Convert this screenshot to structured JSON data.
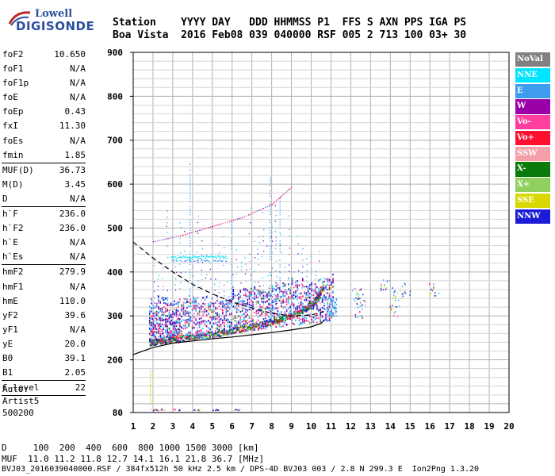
{
  "logo": {
    "line1": "Lowell",
    "line2": "DIGISONDE"
  },
  "header": {
    "row1": "Station    YYYY DAY   DDD HHMMSS P1  FFS S AXN PPS IGA PS",
    "row2": "Boa Vista  2016 Feb08 039 040000 RSF 005 2 713 100 03+ 30"
  },
  "params": [
    {
      "k": "foF2",
      "v": "10.650"
    },
    {
      "k": "foF1",
      "v": "N/A"
    },
    {
      "k": "foF1p",
      "v": "N/A"
    },
    {
      "k": "foE",
      "v": "N/A"
    },
    {
      "k": "foEp",
      "v": "0.43"
    },
    {
      "k": "fxI",
      "v": "11.30"
    },
    {
      "k": "foEs",
      "v": "N/A"
    },
    {
      "k": "fmin",
      "v": "1.85"
    },
    {
      "sep": true
    },
    {
      "k": "MUF(D)",
      "v": "36.73"
    },
    {
      "k": "M(D)",
      "v": "3.45"
    },
    {
      "k": "D",
      "v": "N/A"
    },
    {
      "sep": true
    },
    {
      "k": "h`F",
      "v": "236.0"
    },
    {
      "k": "h`F2",
      "v": "236.0"
    },
    {
      "k": "h`E",
      "v": "N/A"
    },
    {
      "k": "h`Es",
      "v": "N/A"
    },
    {
      "sep": true
    },
    {
      "k": "hmF2",
      "v": "279.9"
    },
    {
      "k": "hmF1",
      "v": "N/A"
    },
    {
      "k": "hmE",
      "v": "110.0"
    },
    {
      "k": "yF2",
      "v": "39.6"
    },
    {
      "k": "yF1",
      "v": "N/A"
    },
    {
      "k": "yE",
      "v": "20.0"
    },
    {
      "k": "B0",
      "v": "39.1"
    },
    {
      "k": "B1",
      "v": "2.05"
    },
    {
      "sep": true
    },
    {
      "k": "C-level",
      "v": "22"
    },
    {
      "sep": true
    }
  ],
  "auto": {
    "line1": "Auto:",
    "line2": "Artist5",
    "line3": "500200"
  },
  "legend": [
    {
      "label": "NoVal",
      "color": "#808080"
    },
    {
      "label": "NNE",
      "color": "#00e5ff"
    },
    {
      "label": "E",
      "color": "#3d9cf0"
    },
    {
      "label": "W",
      "color": "#9b00a8"
    },
    {
      "label": "Vo-",
      "color": "#ff3fa0"
    },
    {
      "label": "Vo+",
      "color": "#ff1030"
    },
    {
      "label": "SSW",
      "color": "#f5a0a8"
    },
    {
      "label": "X-",
      "color": "#0a7a0a"
    },
    {
      "label": "X+",
      "color": "#90d060"
    },
    {
      "label": "SSE",
      "color": "#d8d800"
    },
    {
      "label": "NNW",
      "color": "#1c1cd8"
    }
  ],
  "footer": {
    "d_row": "D     100  200  400  600  800 1000 1500 3000 [km]",
    "muf_row": "MUF  11.0 11.2 11.8 12.7 14.1 16.1 21.8 36.7 [MHz]",
    "info": "BVJ03_2016039040000.RSF / 384fx512h 50 kHz 2.5 km / DPS-4D BVJ03 003 / 2.8 N 299.3 E  Ion2Png 1.3.20"
  },
  "chart_data": {
    "type": "scatter",
    "xlim": [
      1,
      20
    ],
    "ylim": [
      80,
      900
    ],
    "x_ticks": [
      "1",
      "2",
      "3",
      "4",
      "5",
      "6",
      "7",
      "8",
      "9",
      "10",
      "11",
      "12",
      "13",
      "14",
      "15",
      "16",
      "17",
      "18",
      "19",
      "20"
    ],
    "y_ticks": [
      "80",
      "200",
      "300",
      "400",
      "500",
      "600",
      "700",
      "800",
      "900"
    ],
    "grid": true,
    "trace_F2": {
      "x": [
        1.8,
        2.5,
        3.5,
        4.5,
        5.5,
        6.5,
        7.5,
        8.5,
        9.5,
        10.2,
        10.6
      ],
      "y": [
        240,
        244,
        250,
        256,
        263,
        272,
        282,
        295,
        312,
        335,
        370
      ]
    },
    "profile_lower": {
      "x": [
        1.0,
        2.0,
        3.0,
        4.0,
        5.0,
        6.0,
        7.0,
        8.0,
        9.0,
        10.0,
        10.5,
        10.65
      ],
      "y": [
        212,
        228,
        238,
        243,
        248,
        252,
        257,
        262,
        268,
        275,
        283,
        290
      ]
    },
    "profile_dashed": {
      "x": [
        1.0,
        2.0,
        3.0,
        4.0,
        5.0,
        6.0,
        7.0,
        8.0,
        9.0,
        10.0,
        10.65
      ],
      "y": [
        468,
        432,
        400,
        372,
        350,
        332,
        318,
        306,
        300,
        302,
        310
      ]
    },
    "second_hop": {
      "x": [
        2.0,
        3.5,
        5.0,
        6.5,
        8.0,
        9.0
      ],
      "y": [
        470,
        485,
        505,
        525,
        555,
        595
      ]
    },
    "e_layer_echo": {
      "x": [
        1.8,
        2.2,
        3.0,
        4.0,
        5.0,
        6.0
      ],
      "y": [
        85,
        85,
        85,
        85,
        85,
        85
      ]
    },
    "oblique_clusters": [
      {
        "x": 12.3,
        "y": 350
      },
      {
        "x": 12.5,
        "y": 335
      },
      {
        "x": 12.4,
        "y": 310
      },
      {
        "x": 13.7,
        "y": 370
      },
      {
        "x": 14.3,
        "y": 350
      },
      {
        "x": 14.2,
        "y": 310
      },
      {
        "x": 14.8,
        "y": 360
      },
      {
        "x": 16.2,
        "y": 360
      }
    ]
  }
}
